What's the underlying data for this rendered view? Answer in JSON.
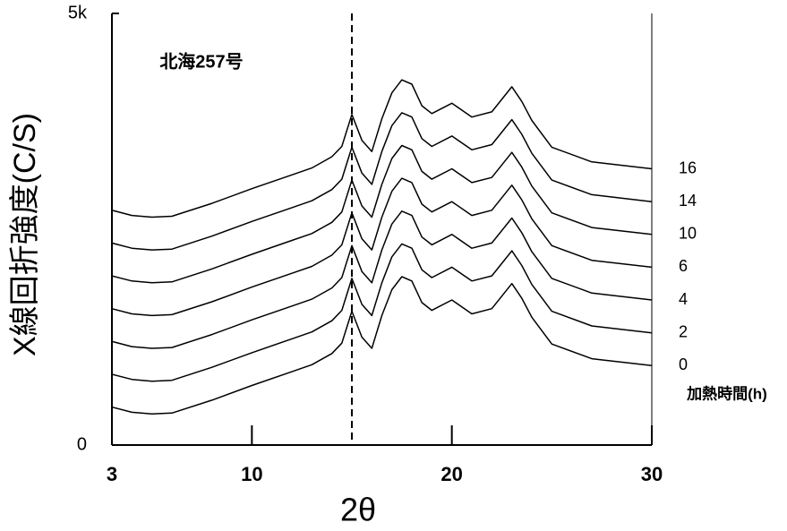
{
  "chart_data": {
    "type": "line",
    "annotation": "北海257号",
    "xlabel": "2θ",
    "ylabel": "X線回折強度(C/S)",
    "legend_title": "加熱時間(h)",
    "x": [
      3,
      4,
      5,
      6,
      8,
      10,
      12,
      13,
      14,
      14.5,
      15,
      15.5,
      16,
      16.5,
      17,
      17.5,
      18,
      18.5,
      19,
      20,
      21,
      22,
      23,
      23.5,
      24,
      25,
      27,
      30
    ],
    "series": [
      {
        "name": "0",
        "color": "#000000",
        "values": [
          440,
          380,
          360,
          370,
          520,
          690,
          850,
          930,
          1060,
          1180,
          1550,
          1250,
          1120,
          1500,
          1800,
          1950,
          1900,
          1650,
          1560,
          1680,
          1520,
          1580,
          1870,
          1700,
          1480,
          1170,
          1000,
          920
        ]
      },
      {
        "name": "2",
        "color": "#000000",
        "values": [
          820,
          760,
          740,
          750,
          900,
          1070,
          1230,
          1310,
          1440,
          1560,
          1930,
          1630,
          1500,
          1880,
          2180,
          2330,
          2280,
          2030,
          1940,
          2060,
          1900,
          1960,
          2250,
          2080,
          1860,
          1550,
          1380,
          1300
        ]
      },
      {
        "name": "4",
        "color": "#000000",
        "values": [
          1200,
          1140,
          1120,
          1130,
          1280,
          1450,
          1610,
          1690,
          1820,
          1940,
          2310,
          2010,
          1880,
          2260,
          2560,
          2710,
          2660,
          2410,
          2320,
          2440,
          2280,
          2340,
          2630,
          2460,
          2240,
          1930,
          1760,
          1680
        ]
      },
      {
        "name": "6",
        "color": "#000000",
        "values": [
          1580,
          1520,
          1500,
          1510,
          1660,
          1830,
          1990,
          2070,
          2200,
          2320,
          2690,
          2390,
          2260,
          2640,
          2940,
          3090,
          3040,
          2790,
          2700,
          2820,
          2660,
          2720,
          3010,
          2840,
          2620,
          2310,
          2140,
          2060
        ]
      },
      {
        "name": "10",
        "color": "#000000",
        "values": [
          1960,
          1900,
          1880,
          1890,
          2040,
          2210,
          2370,
          2450,
          2580,
          2700,
          3070,
          2770,
          2640,
          3020,
          3320,
          3470,
          3420,
          3170,
          3080,
          3200,
          3040,
          3100,
          3390,
          3220,
          3000,
          2690,
          2520,
          2440
        ]
      },
      {
        "name": "14",
        "color": "#000000",
        "values": [
          2340,
          2280,
          2260,
          2270,
          2420,
          2590,
          2750,
          2830,
          2960,
          3080,
          3450,
          3150,
          3020,
          3400,
          3700,
          3850,
          3800,
          3550,
          3460,
          3580,
          3420,
          3480,
          3770,
          3600,
          3380,
          3070,
          2900,
          2820
        ]
      },
      {
        "name": "16",
        "color": "#000000",
        "values": [
          2720,
          2660,
          2640,
          2650,
          2800,
          2970,
          3130,
          3210,
          3340,
          3460,
          3830,
          3530,
          3400,
          3780,
          4080,
          4230,
          4180,
          3930,
          3840,
          3960,
          3800,
          3860,
          4150,
          3980,
          3760,
          3450,
          3280,
          3200
        ]
      }
    ],
    "xlim": [
      3,
      30
    ],
    "xticks": [
      3,
      10,
      20,
      30
    ],
    "ylim": [
      0,
      5000
    ],
    "yticks": [
      0,
      {
        "value": 5000,
        "label": "5k"
      }
    ],
    "vline_x": 15,
    "grid": false
  }
}
